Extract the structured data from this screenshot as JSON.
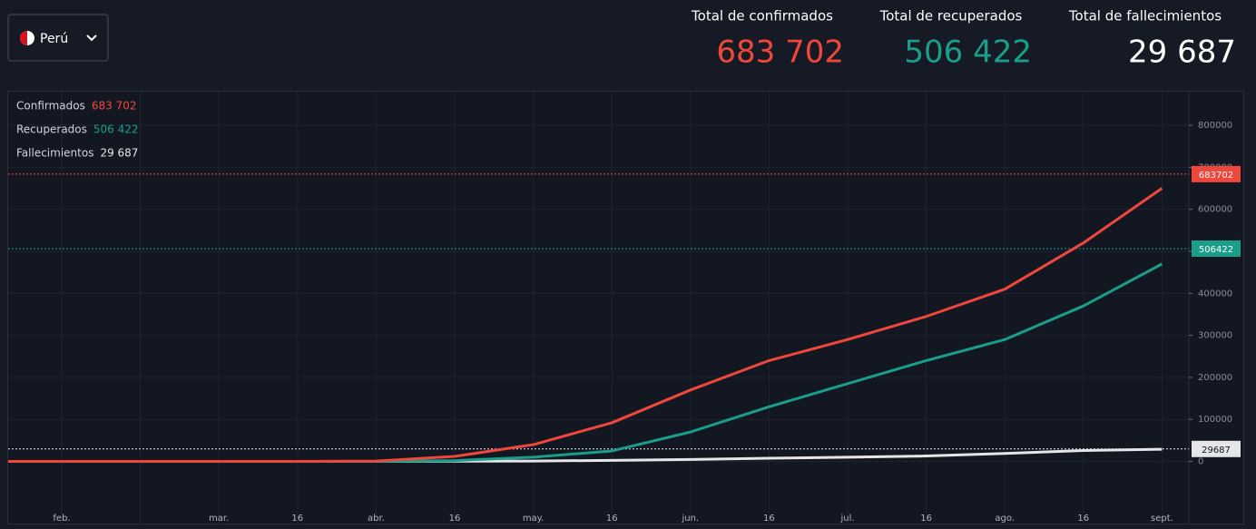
{
  "header": {
    "country": "Perú",
    "totals": [
      {
        "title": "Total de confirmados"
      },
      {
        "title": "Total de recuperados"
      },
      {
        "title": "Total de fallecimientos"
      }
    ]
  },
  "chart_data": {
    "type": "line",
    "categories": [
      "feb.",
      null,
      "mar.",
      "16",
      "abr.",
      "16",
      "may.",
      "16",
      "jun.",
      "16",
      "jul.",
      "16",
      "ago.",
      "16",
      "sept."
    ],
    "series": [
      {
        "name": "Confirmados",
        "color": "#f0473c",
        "total": 683702,
        "total_label": "683 702",
        "values": [
          0,
          0,
          0,
          0,
          1000,
          12000,
          40000,
          92000,
          170000,
          240000,
          290000,
          345000,
          410000,
          520000,
          650000
        ]
      },
      {
        "name": "Recuperados",
        "color": "#1a9e8a",
        "total": 506422,
        "total_label": "506 422",
        "values": [
          0,
          0,
          0,
          0,
          0,
          2000,
          10000,
          25000,
          70000,
          130000,
          185000,
          240000,
          290000,
          370000,
          470000
        ]
      },
      {
        "name": "Fallecimientos",
        "color": "#e6e6ea",
        "total": 29687,
        "total_label": "29 687",
        "values": [
          0,
          0,
          0,
          0,
          100,
          500,
          1000,
          2500,
          4600,
          7600,
          10000,
          13000,
          19000,
          26000,
          29000
        ]
      }
    ],
    "ylim": [
      -150000,
      880000
    ],
    "yticks": [
      0,
      100000,
      200000,
      300000,
      400000,
      500000,
      600000,
      700000,
      800000
    ],
    "grid": true
  }
}
